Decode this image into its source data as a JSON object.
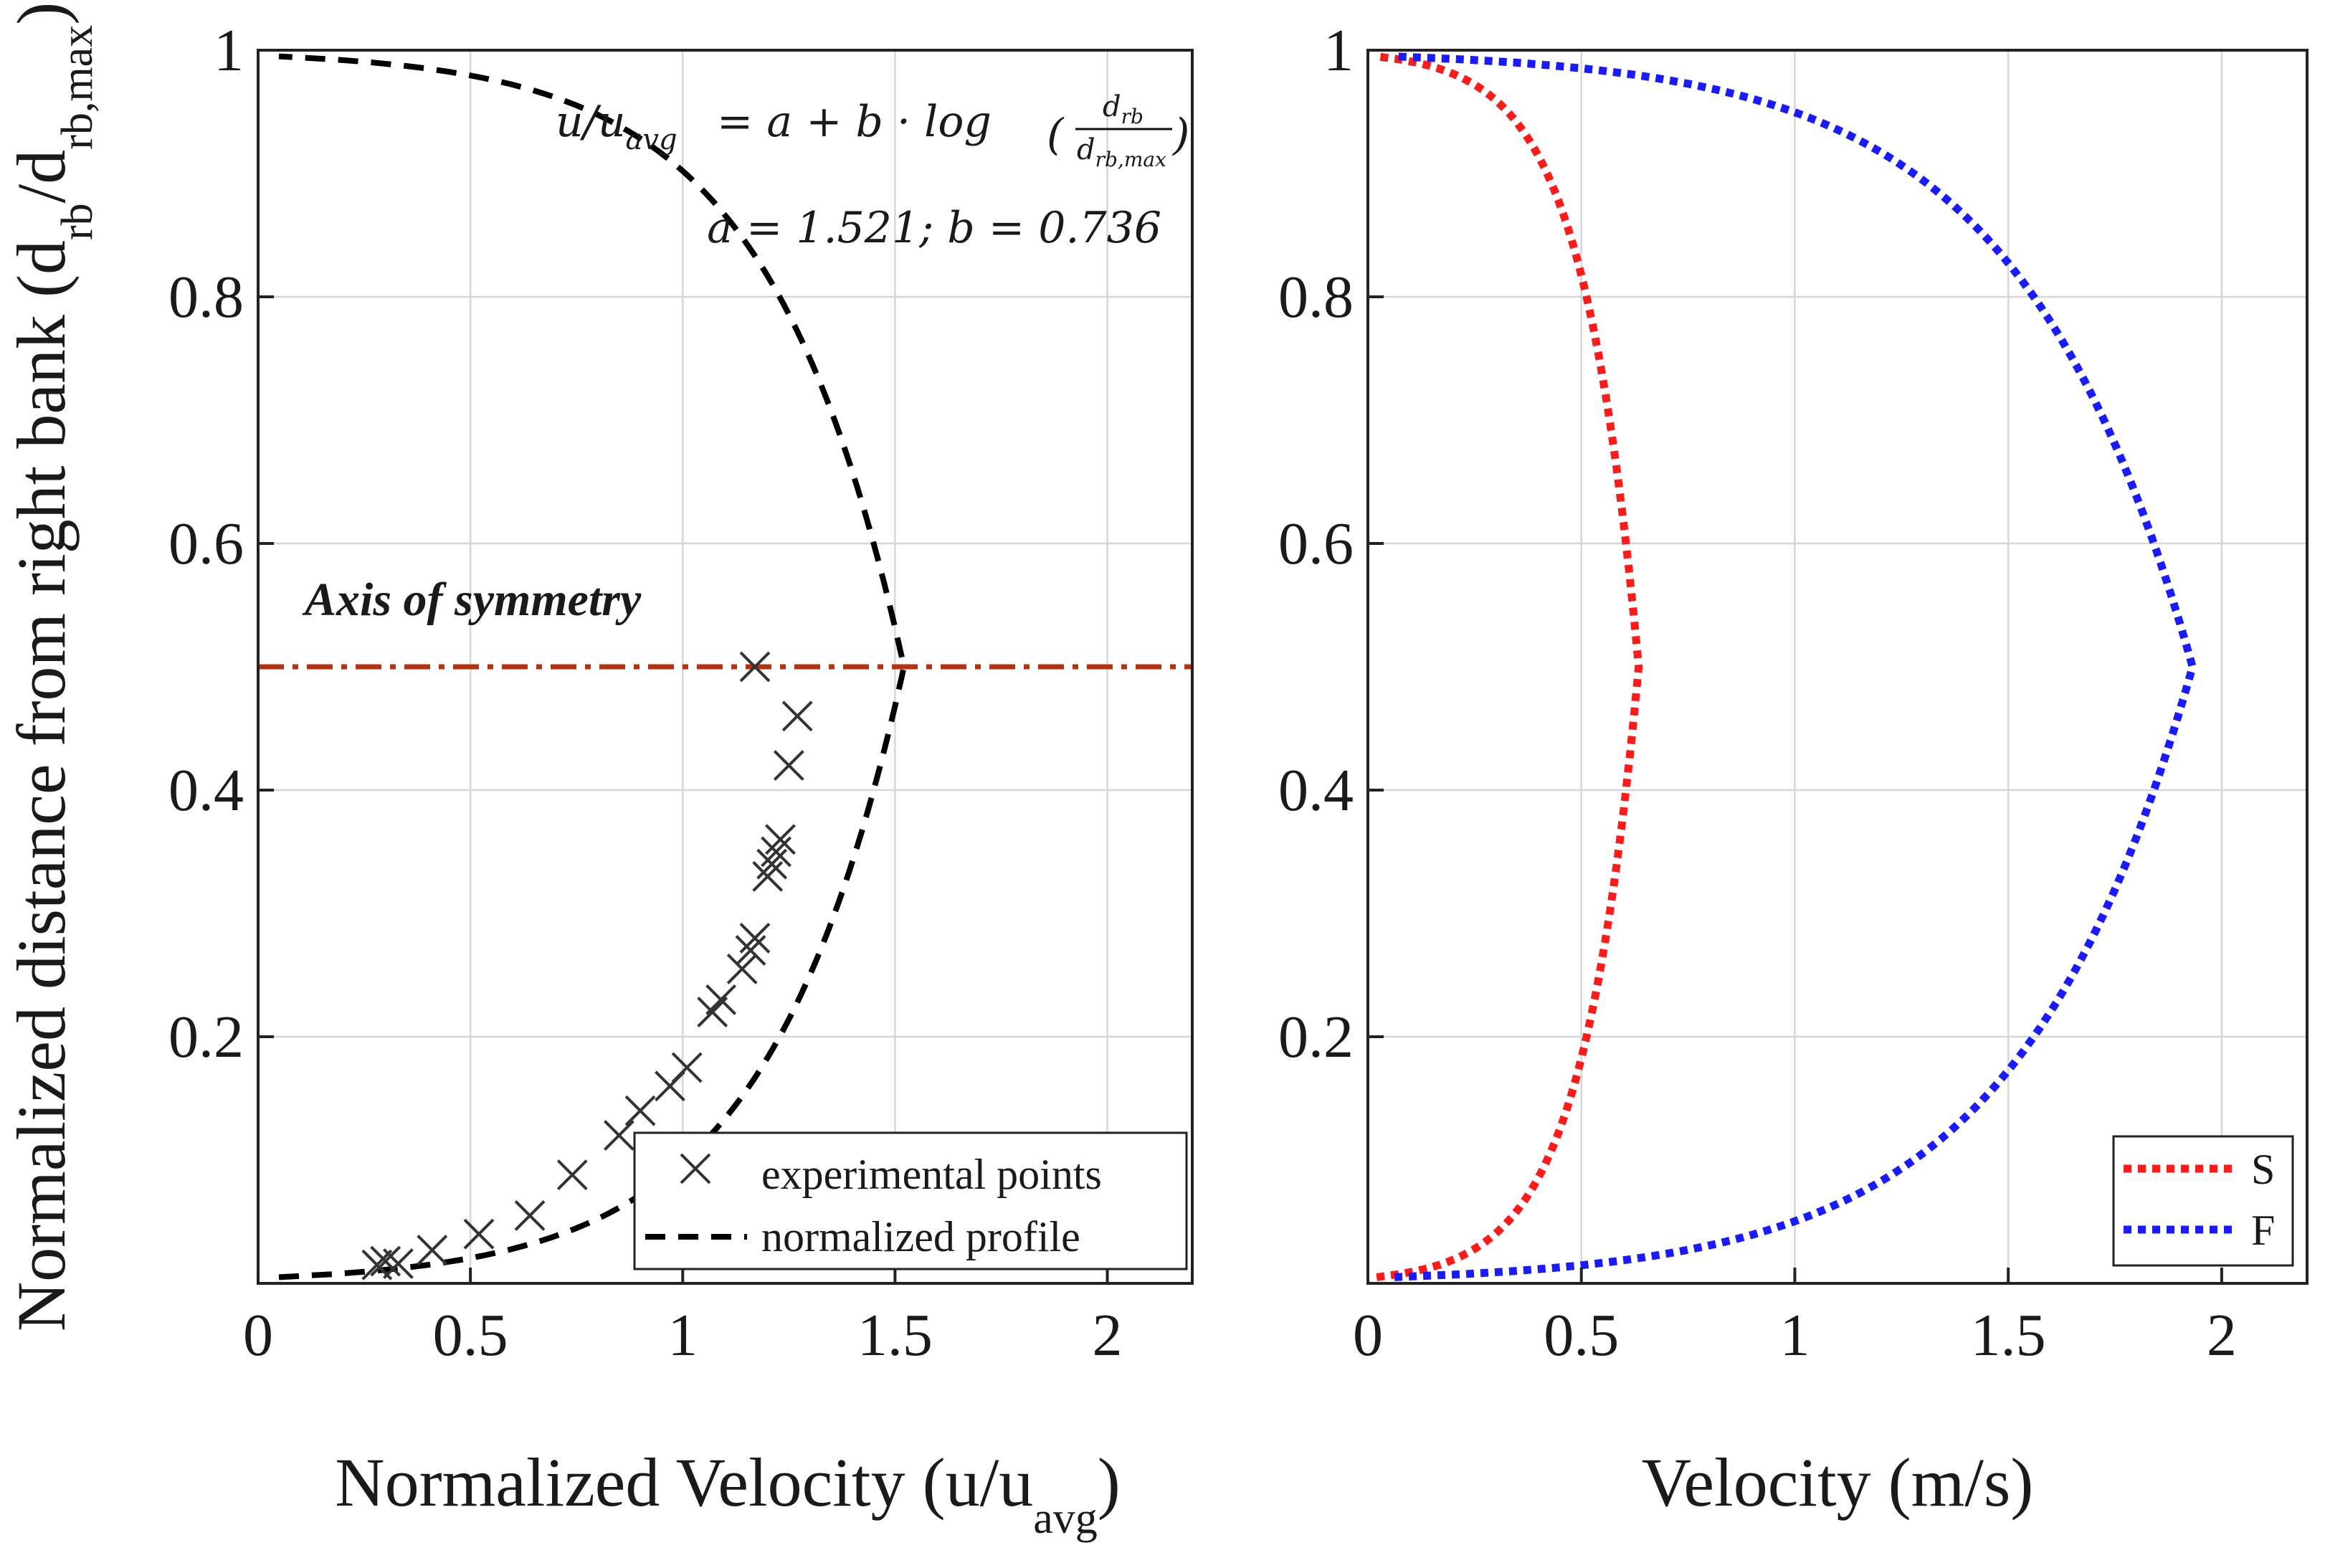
{
  "chart_data": [
    {
      "type": "line",
      "panel": "left",
      "xlabel": "Normalized Velocity  (u/u",
      "xlabel_sub": "avg",
      "xlabel_end": ")",
      "ylabel": "Normalized distance from right bank  (d",
      "ylabel_sub1": "rb",
      "ylabel_mid": "/d",
      "ylabel_sub2": "rb,max",
      "ylabel_end": ")",
      "xlim": [
        0,
        2.2
      ],
      "ylim": [
        0,
        1
      ],
      "grid": true,
      "x_ticks": [
        0,
        0.5,
        1,
        1.5,
        2
      ],
      "x_tick_labels": [
        "0",
        "0.5",
        "1",
        "1.5",
        "2"
      ],
      "y_ticks": [
        0.2,
        0.4,
        0.6,
        0.8,
        1
      ],
      "y_tick_labels": [
        "0.2",
        "0.4",
        "0.6",
        "0.8",
        "1"
      ],
      "equation": {
        "lhs": "u/u",
        "lhs_sub": "avg",
        "rhs": "= a + b · log",
        "num": "d",
        "num_sub": "rb",
        "den": "d",
        "den_sub": "rb,max",
        "params": "a = 1.521;  b = 0.736"
      },
      "annotation": {
        "text": "Axis of symmetry",
        "y": 0.5,
        "color": "#b5320c"
      },
      "series": [
        {
          "name": "experimental points",
          "marker": "x",
          "color": "#333333",
          "points": [
            [
              0.28,
              0.015
            ],
            [
              0.3,
              0.018
            ],
            [
              0.33,
              0.016
            ],
            [
              0.41,
              0.027
            ],
            [
              0.52,
              0.04
            ],
            [
              0.64,
              0.055
            ],
            [
              0.74,
              0.088
            ],
            [
              0.85,
              0.12
            ],
            [
              0.9,
              0.14
            ],
            [
              0.97,
              0.16
            ],
            [
              1.01,
              0.175
            ],
            [
              1.07,
              0.22
            ],
            [
              1.09,
              0.23
            ],
            [
              1.14,
              0.255
            ],
            [
              1.16,
              0.27
            ],
            [
              1.17,
              0.28
            ],
            [
              1.2,
              0.33
            ],
            [
              1.21,
              0.34
            ],
            [
              1.22,
              0.35
            ],
            [
              1.23,
              0.36
            ],
            [
              1.25,
              0.42
            ],
            [
              1.27,
              0.46
            ],
            [
              1.17,
              0.5
            ]
          ]
        },
        {
          "name": "normalized profile",
          "style": "dashed",
          "color": "#000000",
          "a": 1.521,
          "b": 0.736,
          "symmetric_about": 0.5
        }
      ]
    },
    {
      "type": "line",
      "panel": "right",
      "xlabel": "Velocity  (m/s)",
      "xlim": [
        0,
        2.2
      ],
      "ylim": [
        0,
        1
      ],
      "grid": true,
      "x_ticks": [
        0,
        0.5,
        1,
        1.5,
        2
      ],
      "x_tick_labels": [
        "0",
        "0.5",
        "1",
        "1.5",
        "2"
      ],
      "y_ticks": [
        0.2,
        0.4,
        0.6,
        0.8,
        1
      ],
      "y_tick_labels": [
        "0.2",
        "0.4",
        "0.6",
        "0.8",
        "1"
      ],
      "series": [
        {
          "name": "S",
          "style": "dotted",
          "color": "#ff1a1a",
          "scale": 0.417
        },
        {
          "name": "F",
          "style": "dotted",
          "color": "#1a1aff",
          "scale": 1.27
        }
      ]
    }
  ]
}
